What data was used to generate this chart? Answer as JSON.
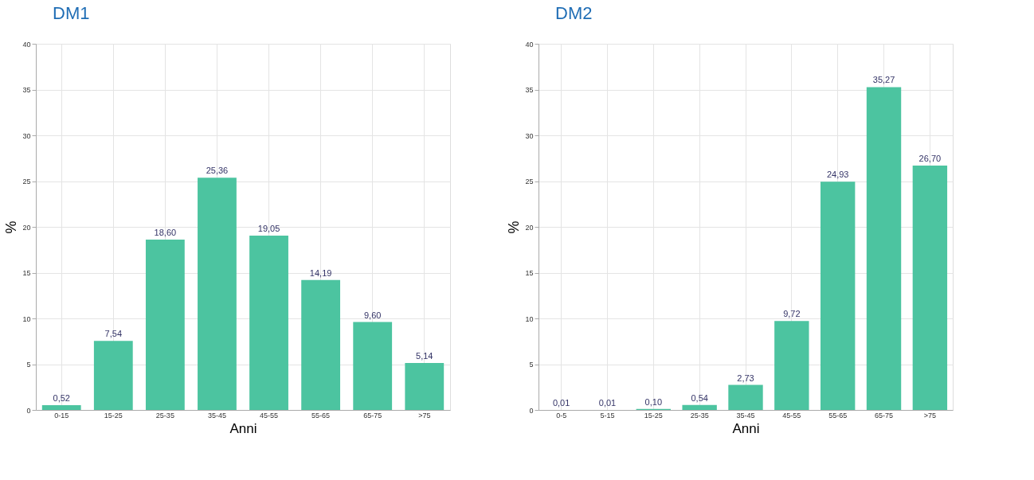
{
  "chart_data": [
    {
      "type": "bar",
      "title": "DM1",
      "xlabel": "Anni",
      "ylabel": "%",
      "categories": [
        "0-15",
        "15-25",
        "25-35",
        "35-45",
        "45-55",
        "55-65",
        "65-75",
        ">75"
      ],
      "values": [
        0.52,
        7.54,
        18.6,
        25.36,
        19.05,
        14.19,
        9.6,
        5.14
      ],
      "value_labels": [
        "0,52",
        "7,54",
        "18,60",
        "25,36",
        "19,05",
        "14,19",
        "9,60",
        "5,14"
      ],
      "color": "#4cc4a0",
      "ylim": [
        0,
        40
      ],
      "yticks": [
        0,
        5,
        10,
        15,
        20,
        25,
        30,
        35,
        40
      ],
      "grid": true
    },
    {
      "type": "bar",
      "title": "DM2",
      "xlabel": "Anni",
      "ylabel": "%",
      "categories": [
        "0-5",
        "5-15",
        "15-25",
        "25-35",
        "35-45",
        "45-55",
        "55-65",
        "65-75",
        ">75"
      ],
      "values": [
        0.01,
        0.01,
        0.1,
        0.54,
        2.73,
        9.72,
        24.93,
        35.27,
        26.7
      ],
      "value_labels": [
        "0,01",
        "0,01",
        "0,10",
        "0,54",
        "2,73",
        "9,72",
        "24,93",
        "35,27",
        "26,70"
      ],
      "color": "#4cc4a0",
      "ylim": [
        0,
        40
      ],
      "yticks": [
        0,
        5,
        10,
        15,
        20,
        25,
        30,
        35,
        40
      ],
      "grid": true
    }
  ]
}
